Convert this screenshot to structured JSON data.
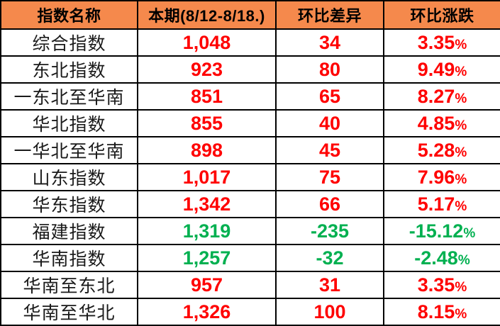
{
  "chart_data": {
    "type": "table",
    "columns": [
      "指数名称",
      "本期(8/12-8/18.)",
      "环比差异",
      "环比涨跌"
    ],
    "percent_symbol": "%",
    "rows": [
      {
        "name": "综合指数",
        "current": "1,048",
        "diff": "34",
        "pct": "3.35",
        "trend": "up"
      },
      {
        "name": "东北指数",
        "current": "923",
        "diff": "80",
        "pct": "9.49",
        "trend": "up"
      },
      {
        "name": "一东北至华南",
        "current": "851",
        "diff": "65",
        "pct": "8.27",
        "trend": "up"
      },
      {
        "name": "华北指数",
        "current": "855",
        "diff": "40",
        "pct": "4.85",
        "trend": "up"
      },
      {
        "name": "一华北至华南",
        "current": "898",
        "diff": "45",
        "pct": "5.28",
        "trend": "up"
      },
      {
        "name": "山东指数",
        "current": "1,017",
        "diff": "75",
        "pct": "7.96",
        "trend": "up"
      },
      {
        "name": "华东指数",
        "current": "1,342",
        "diff": "66",
        "pct": "5.17",
        "trend": "up"
      },
      {
        "name": "福建指数",
        "current": "1,319",
        "diff": "-235",
        "pct": "-15.12",
        "trend": "down"
      },
      {
        "name": "华南指数",
        "current": "1,257",
        "diff": "-32",
        "pct": "-2.48",
        "trend": "down"
      },
      {
        "name": "华南至东北",
        "current": "957",
        "diff": "31",
        "pct": "3.35",
        "trend": "up"
      },
      {
        "name": "华南至华北",
        "current": "1,326",
        "diff": "100",
        "pct": "8.15",
        "trend": "up"
      }
    ],
    "colors": {
      "header_bg": "#F5894C",
      "header_text": "#000000",
      "name_text": "#1A1A1A",
      "up": "#FF0000",
      "down": "#00B050",
      "border": "#000000"
    },
    "layout": {
      "grid": true,
      "header_position": "top"
    }
  }
}
